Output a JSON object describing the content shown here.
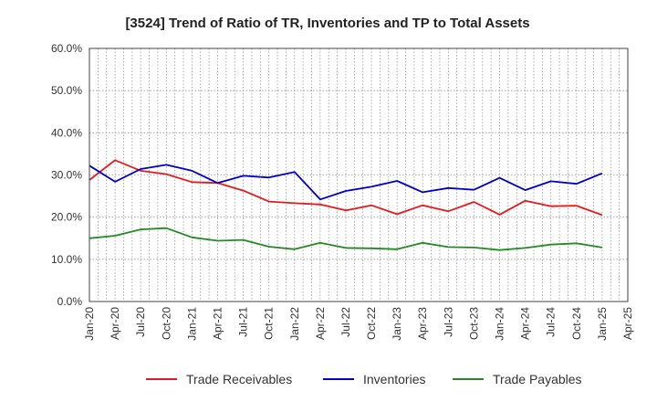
{
  "chart_data": {
    "type": "line",
    "title": "[3524]  Trend of Ratio of TR, Inventories and TP to Total Assets",
    "xlabel": "",
    "ylabel": "",
    "ylim": [
      0,
      60
    ],
    "yticks": [
      "0.0%",
      "10.0%",
      "20.0%",
      "30.0%",
      "40.0%",
      "50.0%",
      "60.0%"
    ],
    "xtick_labels": [
      "Jan-20",
      "Apr-20",
      "Jul-20",
      "Oct-20",
      "Jan-21",
      "Apr-21",
      "Jul-21",
      "Oct-21",
      "Jan-22",
      "Apr-22",
      "Jul-22",
      "Oct-22",
      "Jan-23",
      "Apr-23",
      "Jul-23",
      "Oct-23",
      "Jan-24",
      "Apr-24",
      "Jul-24",
      "Oct-24",
      "Jan-25",
      "Apr-25"
    ],
    "categories": [
      "Jan-20",
      "Apr-20",
      "Jul-20",
      "Oct-20",
      "Jan-21",
      "Apr-21",
      "Jul-21",
      "Oct-21",
      "Jan-22",
      "Apr-22",
      "Jul-22",
      "Oct-22",
      "Jan-23",
      "Apr-23",
      "Jul-23",
      "Oct-23",
      "Jan-24",
      "Apr-24",
      "Jul-24",
      "Oct-24",
      "Jan-25"
    ],
    "grid": true,
    "legend_position": "bottom",
    "series": [
      {
        "name": "Trade Receivables",
        "color": "#e41a1c",
        "values": [
          28.8,
          33.5,
          31.0,
          30.2,
          28.3,
          28.1,
          26.3,
          23.7,
          23.3,
          23.0,
          21.6,
          22.8,
          20.7,
          22.8,
          21.4,
          23.6,
          20.6,
          23.9,
          22.6,
          22.7,
          20.5
        ]
      },
      {
        "name": "Inventories",
        "color": "#0000cc",
        "values": [
          32.2,
          28.4,
          31.4,
          32.4,
          31.0,
          28.1,
          29.8,
          29.4,
          30.7,
          24.2,
          26.2,
          27.2,
          28.6,
          25.9,
          26.9,
          26.5,
          29.3,
          26.4,
          28.5,
          27.9,
          30.4
        ]
      },
      {
        "name": "Trade Payables",
        "color": "#228b22",
        "values": [
          15.0,
          15.6,
          17.1,
          17.4,
          15.2,
          14.4,
          14.6,
          13.0,
          12.4,
          13.9,
          12.7,
          12.6,
          12.4,
          13.9,
          12.9,
          12.8,
          12.2,
          12.7,
          13.5,
          13.8,
          12.8
        ]
      }
    ]
  }
}
